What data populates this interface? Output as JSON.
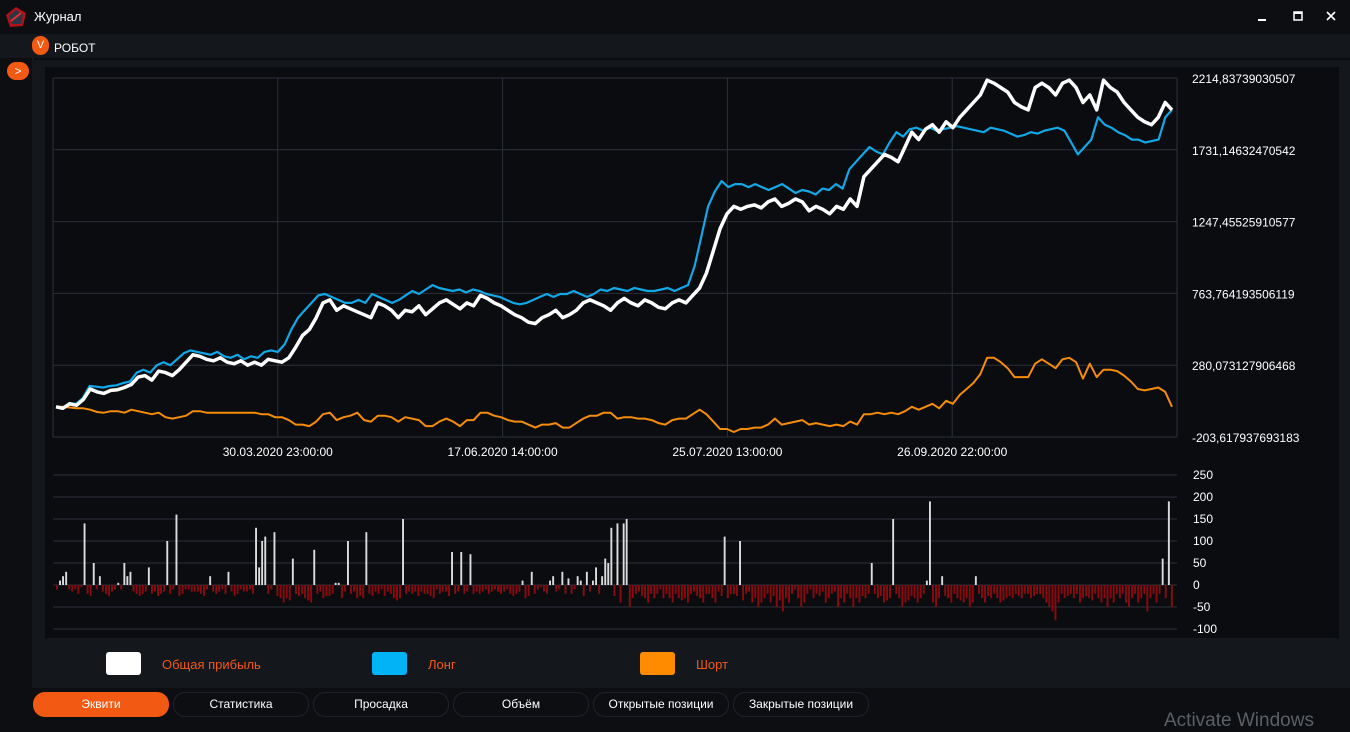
{
  "window": {
    "title": "Журнал",
    "minimize_icon": "minimize-icon",
    "maximize_icon": "maximize-icon",
    "close_icon": "close-icon"
  },
  "menu": {
    "robot_badge": "V",
    "robot_label": "РОБОТ"
  },
  "sidebar": {
    "toggle_label": ">"
  },
  "chart_data": [
    {
      "type": "line",
      "title": "",
      "x_tick_labels": [
        "30.03.2020 23:00:00",
        "17.06.2020 14:00:00",
        "25.07.2020 13:00:00",
        "26.09.2020 22:00:00"
      ],
      "y_tick_labels": [
        "2214,83739030507",
        "1731,14632470542",
        "1247,45525910577",
        "763,764193506119",
        "280,073127906468",
        "-203,617937693183"
      ],
      "ylim": [
        -203.617937693183,
        2214.83739030507
      ],
      "grid": true,
      "series": [
        {
          "name": "Общая прибыль",
          "color": "#ffffff",
          "values": [
            0,
            -10,
            20,
            10,
            50,
            120,
            100,
            90,
            110,
            115,
            130,
            150,
            200,
            210,
            180,
            240,
            230,
            210,
            250,
            300,
            350,
            340,
            320,
            310,
            330,
            300,
            290,
            310,
            280,
            300,
            280,
            320,
            310,
            300,
            330,
            400,
            480,
            520,
            600,
            700,
            720,
            650,
            680,
            660,
            640,
            620,
            600,
            700,
            680,
            650,
            600,
            650,
            640,
            680,
            620,
            660,
            700,
            720,
            690,
            660,
            700,
            680,
            750,
            730,
            700,
            680,
            650,
            620,
            600,
            570,
            560,
            600,
            620,
            650,
            600,
            620,
            650,
            700,
            720,
            700,
            680,
            650,
            700,
            730,
            700,
            680,
            720,
            700,
            670,
            660,
            700,
            720,
            700,
            750,
            800,
            900,
            1050,
            1200,
            1300,
            1350,
            1330,
            1350,
            1360,
            1340,
            1380,
            1400,
            1350,
            1370,
            1400,
            1380,
            1320,
            1350,
            1330,
            1300,
            1350,
            1330,
            1400,
            1350,
            1550,
            1600,
            1650,
            1700,
            1680,
            1650,
            1750,
            1850,
            1800,
            1870,
            1900,
            1850,
            1920,
            1880,
            1950,
            2000,
            2050,
            2100,
            2200,
            2180,
            2150,
            2120,
            2050,
            2020,
            2000,
            2150,
            2180,
            2150,
            2100,
            2180,
            2200,
            2150,
            2050,
            2100,
            2000,
            2200,
            2150,
            2120,
            2050,
            2000,
            1950,
            1920,
            1900,
            1950,
            2050,
            2000
          ]
        },
        {
          "name": "Лонг",
          "color": "#12a8e8",
          "values": [
            0,
            -10,
            25,
            20,
            60,
            140,
            135,
            130,
            140,
            145,
            160,
            170,
            230,
            250,
            230,
            280,
            300,
            280,
            320,
            360,
            380,
            370,
            360,
            350,
            370,
            340,
            330,
            350,
            320,
            340,
            330,
            370,
            380,
            370,
            420,
            520,
            600,
            650,
            700,
            750,
            760,
            740,
            720,
            700,
            700,
            720,
            700,
            760,
            740,
            720,
            700,
            720,
            750,
            780,
            760,
            790,
            820,
            800,
            790,
            780,
            790,
            770,
            790,
            780,
            760,
            750,
            740,
            720,
            700,
            690,
            700,
            720,
            740,
            760,
            740,
            760,
            760,
            780,
            760,
            740,
            760,
            790,
            780,
            800,
            790,
            780,
            800,
            790,
            780,
            780,
            790,
            800,
            780,
            800,
            820,
            950,
            1150,
            1350,
            1450,
            1520,
            1480,
            1500,
            1500,
            1480,
            1500,
            1480,
            1460,
            1480,
            1500,
            1470,
            1440,
            1460,
            1450,
            1430,
            1470,
            1460,
            1500,
            1470,
            1600,
            1650,
            1700,
            1750,
            1720,
            1700,
            1780,
            1850,
            1820,
            1870,
            1880,
            1860,
            1880,
            1860,
            1870,
            1880,
            1890,
            1880,
            1870,
            1860,
            1850,
            1880,
            1870,
            1860,
            1840,
            1820,
            1830,
            1850,
            1840,
            1860,
            1870,
            1880,
            1860,
            1780,
            1700,
            1750,
            1800,
            1950,
            1900,
            1880,
            1850,
            1830,
            1800,
            1800,
            1780,
            1790,
            1800,
            1950,
            2000
          ]
        },
        {
          "name": "Шорт",
          "color": "#f58c0a",
          "values": [
            0,
            0,
            -5,
            -10,
            -10,
            -20,
            -35,
            -40,
            -30,
            -30,
            -40,
            -20,
            -30,
            -40,
            -50,
            -40,
            -70,
            -80,
            -70,
            -60,
            -30,
            -30,
            -40,
            -40,
            -40,
            -40,
            -40,
            -40,
            -40,
            -40,
            -50,
            -50,
            -70,
            -70,
            -90,
            -120,
            -120,
            -130,
            -100,
            -50,
            -40,
            -90,
            -70,
            -60,
            -40,
            -90,
            -100,
            -60,
            -60,
            -70,
            -100,
            -70,
            -80,
            -90,
            -130,
            -130,
            -100,
            -80,
            -100,
            -130,
            -90,
            -90,
            -40,
            -40,
            -60,
            -70,
            -90,
            -100,
            -100,
            -120,
            -140,
            -120,
            -120,
            -110,
            -140,
            -140,
            -110,
            -80,
            -60,
            -60,
            -40,
            -40,
            -80,
            -70,
            -70,
            -80,
            -80,
            -90,
            -110,
            -120,
            -90,
            -80,
            -80,
            -50,
            -20,
            -50,
            -100,
            -150,
            -150,
            -170,
            -150,
            -150,
            -140,
            -140,
            -120,
            -80,
            -120,
            -110,
            -100,
            -90,
            -120,
            -110,
            -120,
            -130,
            -120,
            -130,
            -100,
            -120,
            -50,
            -50,
            -40,
            -50,
            -40,
            -50,
            -30,
            0,
            -20,
            0,
            20,
            -10,
            40,
            20,
            80,
            120,
            160,
            220,
            330,
            330,
            300,
            260,
            200,
            200,
            200,
            290,
            320,
            290,
            260,
            320,
            330,
            300,
            190,
            290,
            200,
            250,
            250,
            240,
            210,
            170,
            120,
            110,
            120,
            130,
            100,
            0
          ]
        }
      ]
    },
    {
      "type": "bar",
      "title": "",
      "y_tick_labels": [
        "250",
        "200",
        "150",
        "100",
        "50",
        "0",
        "-50",
        "-100"
      ],
      "ylim": [
        -100,
        250
      ],
      "grid": true,
      "positive_color": "#dcdcdc",
      "negative_color": "#8c0a0f",
      "values": [
        -10,
        10,
        20,
        30,
        -10,
        -15,
        -10,
        -20,
        -5,
        140,
        -20,
        -25,
        50,
        -10,
        20,
        -15,
        -20,
        -25,
        -15,
        -10,
        5,
        -10,
        50,
        20,
        30,
        -15,
        -20,
        -25,
        -20,
        -15,
        40,
        -20,
        -15,
        -25,
        -20,
        -15,
        100,
        -20,
        -10,
        160,
        -25,
        -20,
        -10,
        -10,
        -15,
        -15,
        -15,
        -20,
        -25,
        -10,
        20,
        -15,
        -20,
        -15,
        -10,
        -20,
        30,
        -15,
        -25,
        -20,
        -10,
        -15,
        -15,
        -10,
        -20,
        130,
        40,
        100,
        110,
        -20,
        -10,
        120,
        -25,
        -30,
        -40,
        -30,
        -35,
        60,
        -20,
        -25,
        -20,
        -30,
        -35,
        -40,
        80,
        -20,
        -15,
        -30,
        -25,
        -25,
        -20,
        5,
        5,
        -30,
        -15,
        100,
        -20,
        -15,
        -30,
        -25,
        -30,
        120,
        -20,
        -25,
        -15,
        -20,
        -10,
        -25,
        -15,
        -20,
        -30,
        -35,
        -30,
        150,
        -20,
        -15,
        -20,
        -15,
        -25,
        -15,
        -20,
        -20,
        -25,
        -30,
        -10,
        -20,
        -15,
        -15,
        -25,
        75,
        -20,
        -15,
        75,
        -20,
        -15,
        70,
        -20,
        -15,
        -20,
        -15,
        -10,
        -20,
        -15,
        -10,
        -15,
        -20,
        -15,
        -10,
        -20,
        -25,
        -20,
        -15,
        10,
        -30,
        -25,
        30,
        -20,
        -10,
        -5,
        -15,
        -20,
        10,
        20,
        -15,
        -10,
        30,
        -20,
        15,
        -20,
        -10,
        20,
        10,
        -25,
        30,
        -15,
        10,
        40,
        -20,
        20,
        60,
        50,
        130,
        -25,
        140,
        -40,
        140,
        150,
        -50,
        -30,
        -20,
        -15,
        -25,
        -30,
        -40,
        -20,
        -30,
        -20,
        -10,
        -30,
        -20,
        -30,
        -40,
        -20,
        -30,
        -35,
        -30,
        -40,
        -20,
        -15,
        -25,
        -30,
        -40,
        -20,
        -20,
        -30,
        -40,
        -15,
        -25,
        110,
        -30,
        -20,
        -20,
        -25,
        100,
        -35,
        -20,
        -15,
        -40,
        -30,
        -50,
        -40,
        -30,
        -20,
        -40,
        -25,
        -50,
        -35,
        -60,
        -30,
        -40,
        -20,
        -10,
        -30,
        -50,
        -40,
        -20,
        -10,
        -30,
        -20,
        -25,
        -15,
        -40,
        -30,
        -20,
        -15,
        -50,
        -30,
        -40,
        -20,
        -30,
        -50,
        -30,
        -40,
        -25,
        -30,
        -20,
        50,
        -20,
        -30,
        -25,
        -40,
        -35,
        -30,
        150,
        -20,
        -30,
        -50,
        -40,
        -35,
        -25,
        -30,
        -40,
        -30,
        -20,
        10,
        190,
        -40,
        -50,
        -30,
        20,
        -25,
        -30,
        -40,
        -20,
        -30,
        -35,
        -40,
        -30,
        -50,
        -40,
        20,
        -20,
        -30,
        -40,
        -25,
        -30,
        -20,
        -30,
        -40,
        -35,
        -30,
        -25,
        -30,
        -20,
        -25,
        -30,
        -20,
        -20,
        -30,
        -25,
        -20,
        -20,
        -30,
        -40,
        -50,
        -60,
        -80,
        -40,
        -20,
        -30,
        -25,
        -20,
        -30,
        -20,
        -40,
        -30,
        -25,
        -30,
        -35,
        -20,
        -30,
        -40,
        -30,
        -50,
        -30,
        -40,
        -20,
        -30,
        -20,
        -40,
        -50,
        -30,
        -20,
        -40,
        -30,
        -20,
        -60,
        -30,
        -20,
        -40,
        -20,
        60,
        -30,
        190,
        -50
      ]
    }
  ],
  "legend": [
    {
      "label": "Общая прибыль",
      "color": "#ffffff"
    },
    {
      "label": "Лонг",
      "color": "#00b4f5"
    },
    {
      "label": "Шорт",
      "color": "#ff8c00"
    }
  ],
  "tabs": [
    {
      "label": "Эквити",
      "active": true
    },
    {
      "label": "Статистика",
      "active": false
    },
    {
      "label": "Просадка",
      "active": false
    },
    {
      "label": "Объём",
      "active": false
    },
    {
      "label": "Открытые позиции",
      "active": false
    },
    {
      "label": "Закрытые позиции",
      "active": false
    }
  ],
  "watermark": "Activate Windows"
}
